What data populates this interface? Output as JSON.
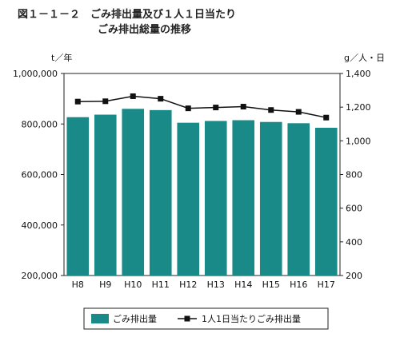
{
  "chart_data": {
    "type": "bar",
    "title": "図１－１－２　ごみ排出量及び１人１日当たり",
    "subtitle": "ごみ排出総量の推移",
    "categories": [
      "H8",
      "H9",
      "H10",
      "H11",
      "H12",
      "H13",
      "H14",
      "H15",
      "H16",
      "H17"
    ],
    "series": [
      {
        "name": "ごみ排出量",
        "type": "bar",
        "axis": "left",
        "values": [
          827000,
          837000,
          860000,
          855000,
          805000,
          812000,
          815000,
          808000,
          803000,
          785000
        ]
      },
      {
        "name": "1人1日当たりごみ排出量",
        "type": "line",
        "axis": "right",
        "values": [
          1233,
          1235,
          1265,
          1250,
          1193,
          1198,
          1203,
          1183,
          1172,
          1138
        ]
      }
    ],
    "ylabel_left": "t／年",
    "ylabel_right": "g／人・日",
    "ylim_left": [
      200000,
      1000000
    ],
    "ylim_right": [
      200,
      1400
    ],
    "yticks_left": [
      "200,000",
      "400,000",
      "600,000",
      "800,000",
      "1,000,000"
    ],
    "yticks_right": [
      "200",
      "400",
      "600",
      "800",
      "1,000",
      "1,200",
      "1,400"
    ],
    "grid": false,
    "legend_position": "bottom",
    "colors": {
      "bar": "#1a8a88",
      "line": "#111111"
    }
  }
}
